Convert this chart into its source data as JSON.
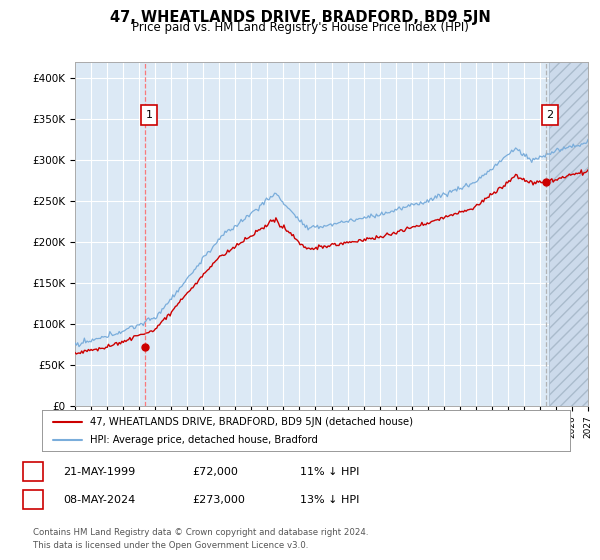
{
  "title": "47, WHEATLANDS DRIVE, BRADFORD, BD9 5JN",
  "subtitle": "Price paid vs. HM Land Registry's House Price Index (HPI)",
  "legend_label_red": "47, WHEATLANDS DRIVE, BRADFORD, BD9 5JN (detached house)",
  "legend_label_blue": "HPI: Average price, detached house, Bradford",
  "annotation1_date": "21-MAY-1999",
  "annotation1_price": "£72,000",
  "annotation1_hpi": "11% ↓ HPI",
  "annotation2_date": "08-MAY-2024",
  "annotation2_price": "£273,000",
  "annotation2_hpi": "13% ↓ HPI",
  "footer": "Contains HM Land Registry data © Crown copyright and database right 2024.\nThis data is licensed under the Open Government Licence v3.0.",
  "red_color": "#cc0000",
  "blue_color": "#7aaddb",
  "plot_bg": "#dce9f5",
  "hatch_bg": "#ccdaeb",
  "grid_color": "#ffffff",
  "ylim": [
    0,
    420000
  ],
  "yticks": [
    0,
    50000,
    100000,
    150000,
    200000,
    250000,
    300000,
    350000,
    400000
  ],
  "ytick_labels": [
    "£0",
    "£50K",
    "£100K",
    "£150K",
    "£200K",
    "£250K",
    "£300K",
    "£350K",
    "£400K"
  ],
  "xlim_start": 1995,
  "xlim_end": 2027,
  "sale1_year": 1999.38,
  "sale1_price": 72000,
  "sale2_year": 2024.38,
  "sale2_price": 273000,
  "future_start": 2024.5
}
